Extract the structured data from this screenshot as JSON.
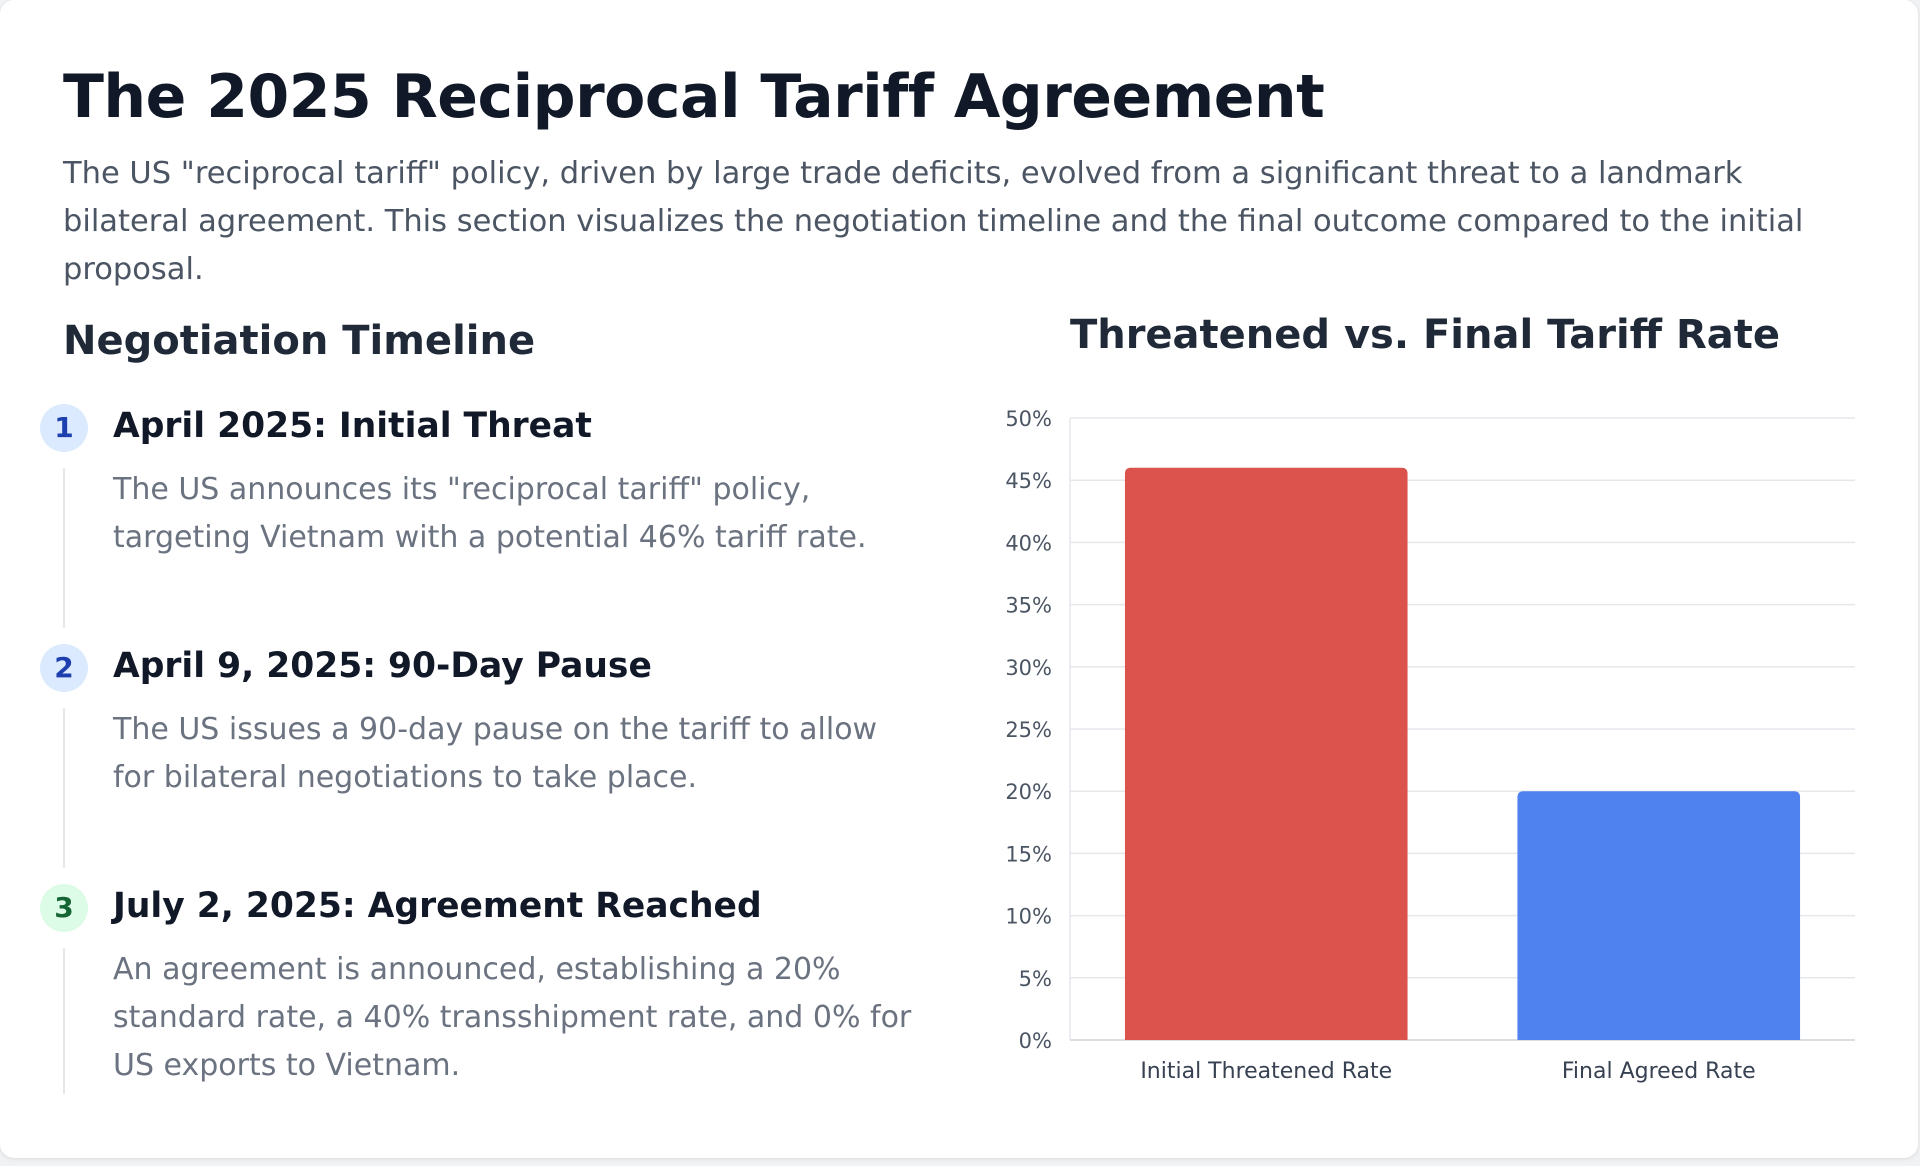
{
  "header": {
    "title": "The 2025 Reciprocal Tariff Agreement",
    "intro": "The US \"reciprocal tariff\" policy, driven by large trade deficits, evolved from a significant threat to a landmark bilateral agreement. This section visualizes the negotiation timeline and the final outcome compared to the initial proposal."
  },
  "timeline": {
    "heading": "Negotiation Timeline",
    "items": [
      {
        "number": "1",
        "title": "April 2025: Initial Threat",
        "description": "The US announces its \"reciprocal tariff\" policy, targeting Vietnam with a potential 46% tariff rate.",
        "badge_bg": "#dbeafe",
        "badge_color": "#1e40af"
      },
      {
        "number": "2",
        "title": "April 9, 2025: 90-Day Pause",
        "description": "The US issues a 90-day pause on the tariff to allow for bilateral negotiations to take place.",
        "badge_bg": "#dbeafe",
        "badge_color": "#1e40af"
      },
      {
        "number": "3",
        "title": "July 2, 2025: Agreement Reached",
        "description": "An agreement is announced, establishing a 20% standard rate, a 40% transshipment rate, and 0% for US exports to Vietnam.",
        "badge_bg": "#dcfce7",
        "badge_color": "#166534"
      }
    ]
  },
  "chart_data": {
    "type": "bar",
    "title": "Threatened vs. Final Tariff Rate",
    "xlabel": "",
    "ylabel": "",
    "categories": [
      "Initial Threatened Rate",
      "Final Agreed Rate"
    ],
    "values": [
      46,
      20
    ],
    "colors": [
      "#dc524c",
      "#4f82ee"
    ],
    "ylim": [
      0,
      50
    ],
    "ytick_step": 5,
    "ytick_suffix": "%",
    "grid": true,
    "legend": "none"
  }
}
